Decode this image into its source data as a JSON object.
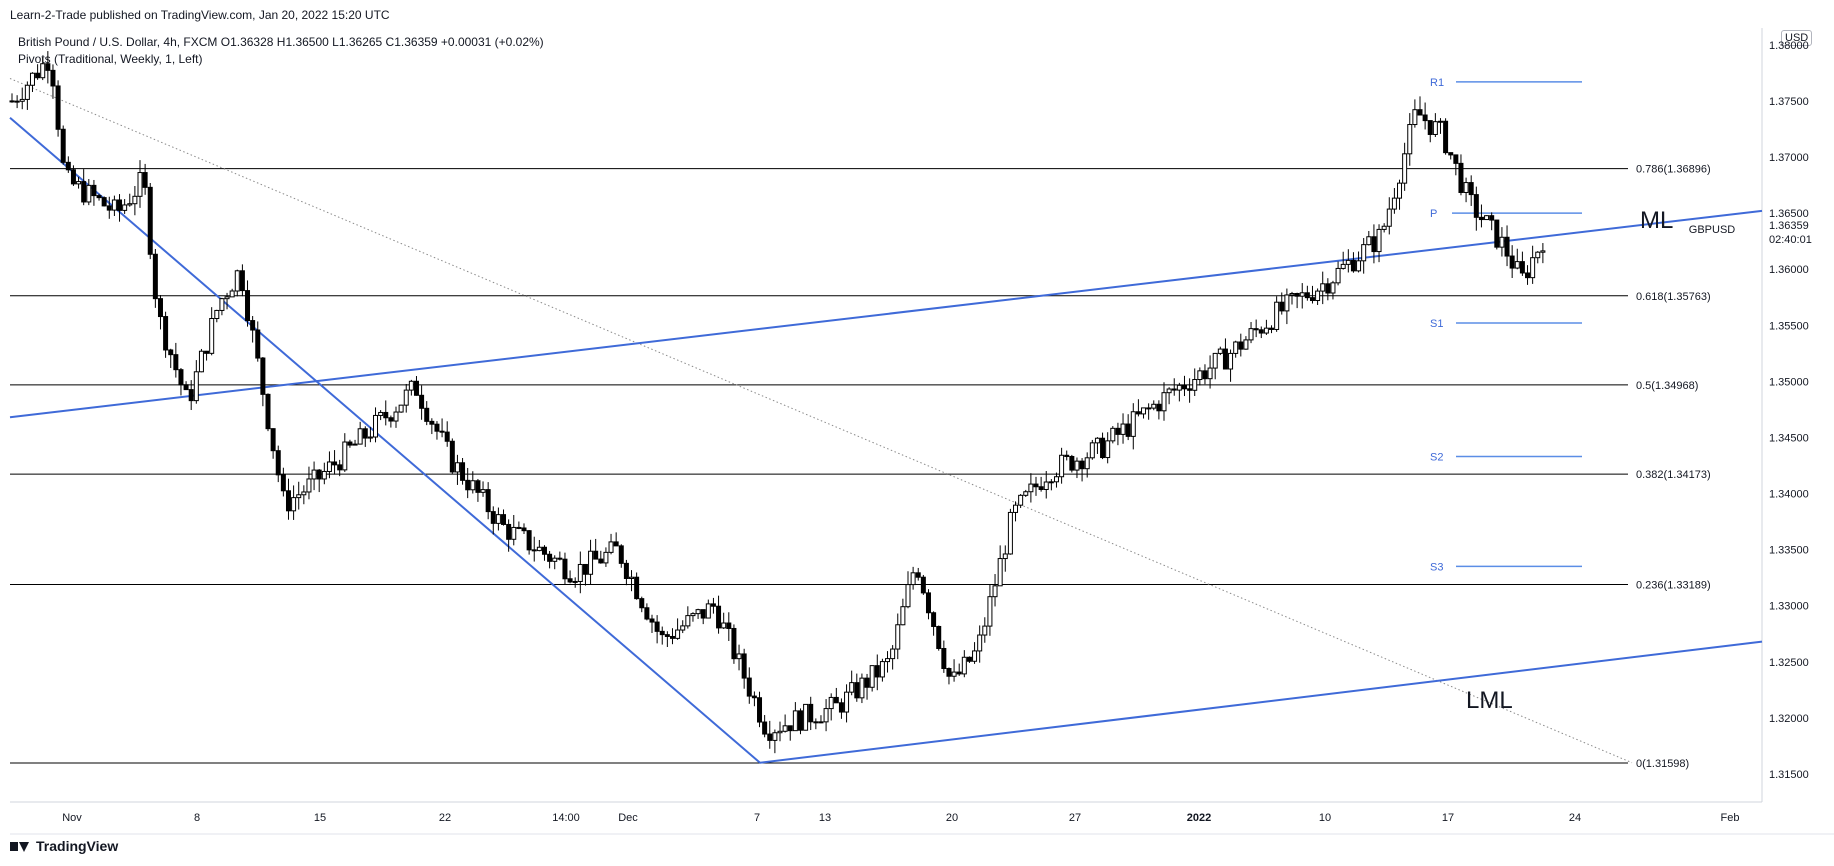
{
  "header": {
    "published": "Learn-2-Trade published on TradingView.com, Jan 20, 2022 15:20 UTC"
  },
  "legend": {
    "symbol_line": "British Pound / U.S. Dollar, 4h, FXCM  O1.36328  H1.36500  L1.36265  C1.36359  +0.00031 (+0.02%)",
    "indicator_line": "Pivots (Traditional, Weekly, 1, Left)"
  },
  "currency_button": "USD",
  "footer": {
    "brand": "TradingView"
  },
  "colors": {
    "up_candle": "#000000",
    "down_candle": "#000000",
    "trendline": "#3f6ad8",
    "fib_line": "#000000",
    "pivot_line": "#5b8ee6",
    "pivot_label": "#3f6ad8"
  },
  "chart_data": {
    "type": "candlestick",
    "symbol": "GBPUSD",
    "timeframe": "4h",
    "ylim": [
      1.3125,
      1.3815
    ],
    "y_ticks": [
      "1.38000",
      "1.37500",
      "1.37000",
      "1.36500",
      "1.36000",
      "1.35500",
      "1.35000",
      "1.34500",
      "1.34000",
      "1.33500",
      "1.33000",
      "1.32500",
      "1.32000",
      "1.31500"
    ],
    "x_ticks": [
      "Nov",
      "8",
      "15",
      "22",
      "14:00",
      "Dec",
      "7",
      "13",
      "20",
      "27",
      "2022",
      "10",
      "17",
      "24",
      "Feb"
    ],
    "last_price": {
      "label": "GBPUSD",
      "value": "1.36359",
      "countdown": "02:40:01"
    },
    "fib_levels": [
      {
        "ratio": "0.786",
        "price": 1.36896,
        "label": "0.786(1.36896)"
      },
      {
        "ratio": "0.618",
        "price": 1.35763,
        "label": "0.618(1.35763)"
      },
      {
        "ratio": "0.5",
        "price": 1.34968,
        "label": "0.5(1.34968)"
      },
      {
        "ratio": "0.382",
        "price": 1.34173,
        "label": "0.382(1.34173)"
      },
      {
        "ratio": "0.236",
        "price": 1.33189,
        "label": "0.236(1.33189)"
      },
      {
        "ratio": "0",
        "price": 1.31598,
        "label": "0(1.31598)"
      }
    ],
    "pivots": [
      {
        "name": "R1",
        "price": 1.3767
      },
      {
        "name": "P",
        "price": 1.365
      },
      {
        "name": "S1",
        "price": 1.3552
      },
      {
        "name": "S2",
        "price": 1.3433
      },
      {
        "name": "S3",
        "price": 1.3335
      }
    ],
    "trendline_labels": {
      "median": "ML",
      "lower": "LML"
    },
    "series": [
      {
        "name": "GBPUSD",
        "anchors": [
          {
            "x": 0,
            "p": 1.375
          },
          {
            "x": 0.022,
            "p": 1.379
          },
          {
            "x": 0.03,
            "p": 1.368
          },
          {
            "x": 0.06,
            "p": 1.365
          },
          {
            "x": 0.075,
            "p": 1.368
          },
          {
            "x": 0.083,
            "p": 1.356
          },
          {
            "x": 0.1,
            "p": 1.348
          },
          {
            "x": 0.118,
            "p": 1.357
          },
          {
            "x": 0.13,
            "p": 1.36
          },
          {
            "x": 0.155,
            "p": 1.339
          },
          {
            "x": 0.172,
            "p": 1.341
          },
          {
            "x": 0.2,
            "p": 1.345
          },
          {
            "x": 0.23,
            "p": 1.3495
          },
          {
            "x": 0.25,
            "p": 1.343
          },
          {
            "x": 0.28,
            "p": 1.337
          },
          {
            "x": 0.32,
            "p": 1.333
          },
          {
            "x": 0.345,
            "p": 1.335
          },
          {
            "x": 0.37,
            "p": 1.327
          },
          {
            "x": 0.4,
            "p": 1.33
          },
          {
            "x": 0.43,
            "p": 1.319
          },
          {
            "x": 0.47,
            "p": 1.321
          },
          {
            "x": 0.5,
            "p": 1.325
          },
          {
            "x": 0.515,
            "p": 1.334
          },
          {
            "x": 0.535,
            "p": 1.323
          },
          {
            "x": 0.55,
            "p": 1.326
          },
          {
            "x": 0.57,
            "p": 1.338
          },
          {
            "x": 0.59,
            "p": 1.342
          },
          {
            "x": 0.62,
            "p": 1.344
          },
          {
            "x": 0.66,
            "p": 1.349
          },
          {
            "x": 0.69,
            "p": 1.352
          },
          {
            "x": 0.72,
            "p": 1.356
          },
          {
            "x": 0.75,
            "p": 1.359
          },
          {
            "x": 0.78,
            "p": 1.363
          },
          {
            "x": 0.8,
            "p": 1.374
          },
          {
            "x": 0.815,
            "p": 1.372
          },
          {
            "x": 0.83,
            "p": 1.366
          },
          {
            "x": 0.85,
            "p": 1.362
          },
          {
            "x": 0.86,
            "p": 1.359
          },
          {
            "x": 0.875,
            "p": 1.3636
          }
        ]
      }
    ]
  }
}
